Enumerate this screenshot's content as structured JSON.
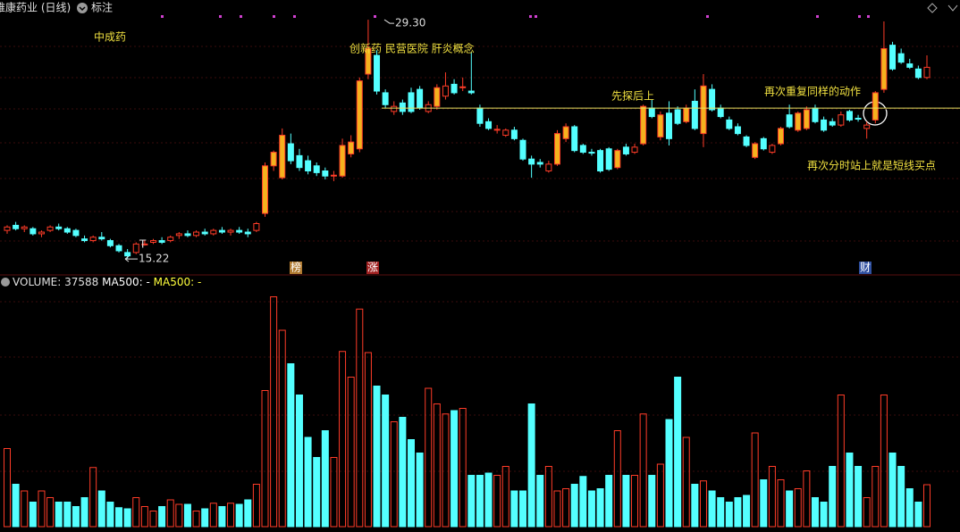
{
  "header": {
    "title": "维康药业 (日线)",
    "menu": "标注"
  },
  "chart_data": [
    {
      "type": "candlestick",
      "ylim": [
        14.7,
        30.46
      ],
      "up_color": "#ff3c28",
      "up_fill": "#f5b21e",
      "down_color": "#54ffff",
      "reference_line": {
        "value": 24.1,
        "color": "#e8e060"
      },
      "max_label": {
        "value": 29.3,
        "label": "29.30"
      },
      "min_label": {
        "value": 15.22,
        "label": "15.22"
      },
      "annotations": [
        "中成药",
        "创新药 民营医院 肝炎概念",
        "先探后上",
        "再次重复同样的动作",
        "再次分时站上就是短线买点",
        "T"
      ],
      "badges": [
        "榜",
        "涨",
        "财"
      ],
      "candles": [
        [
          16.9,
          17.2,
          16.7,
          17.1
        ],
        [
          17.2,
          17.4,
          16.9,
          17.0
        ],
        [
          17.0,
          17.2,
          16.8,
          17.1
        ],
        [
          17.0,
          17.1,
          16.6,
          16.7
        ],
        [
          16.7,
          16.9,
          16.5,
          16.8
        ],
        [
          16.9,
          17.2,
          16.8,
          17.1
        ],
        [
          17.1,
          17.3,
          16.9,
          17.0
        ],
        [
          17.0,
          17.1,
          16.7,
          16.8
        ],
        [
          16.9,
          17.0,
          16.5,
          16.6
        ],
        [
          16.4,
          16.6,
          16.2,
          16.3
        ],
        [
          16.3,
          16.6,
          16.2,
          16.5
        ],
        [
          16.5,
          16.8,
          16.3,
          16.4
        ],
        [
          16.3,
          16.4,
          15.9,
          16.0
        ],
        [
          16.0,
          16.1,
          15.6,
          15.7
        ],
        [
          15.6,
          15.8,
          15.22,
          15.4
        ],
        [
          15.6,
          16.2,
          15.5,
          16.1
        ],
        [
          16.1,
          16.3,
          16.0,
          16.1
        ],
        [
          16.2,
          16.4,
          16.1,
          16.3
        ],
        [
          16.3,
          16.5,
          16.1,
          16.2
        ],
        [
          16.3,
          16.6,
          16.2,
          16.5
        ],
        [
          16.6,
          16.8,
          16.4,
          16.7
        ],
        [
          16.7,
          16.9,
          16.5,
          16.6
        ],
        [
          16.6,
          16.9,
          16.5,
          16.8
        ],
        [
          16.8,
          17.0,
          16.6,
          16.7
        ],
        [
          16.7,
          17.0,
          16.6,
          16.9
        ],
        [
          16.9,
          17.1,
          16.7,
          16.8
        ],
        [
          16.8,
          17.0,
          16.6,
          16.9
        ],
        [
          16.9,
          17.1,
          16.7,
          16.8
        ],
        [
          16.8,
          17.0,
          16.5,
          16.7
        ],
        [
          16.9,
          17.4,
          16.8,
          17.3
        ],
        [
          17.9,
          20.9,
          17.7,
          20.7
        ],
        [
          20.7,
          21.6,
          20.4,
          21.5
        ],
        [
          20.0,
          22.9,
          19.9,
          22.5
        ],
        [
          22.0,
          22.6,
          20.8,
          21.0
        ],
        [
          21.3,
          21.7,
          20.4,
          20.6
        ],
        [
          21.0,
          21.3,
          20.2,
          20.4
        ],
        [
          20.7,
          20.9,
          20.1,
          20.3
        ],
        [
          20.4,
          20.6,
          19.9,
          20.1
        ],
        [
          20.1,
          20.4,
          19.8,
          20.15
        ],
        [
          20.1,
          22.3,
          20.0,
          21.9
        ],
        [
          21.4,
          22.5,
          21.2,
          22.1
        ],
        [
          21.7,
          25.9,
          21.5,
          25.7
        ],
        [
          26.1,
          29.3,
          25.8,
          27.6
        ],
        [
          27.2,
          27.5,
          24.9,
          25.1
        ],
        [
          25.0,
          25.2,
          24.1,
          24.3
        ],
        [
          23.9,
          24.5,
          23.7,
          24.2
        ],
        [
          24.4,
          24.6,
          23.7,
          23.9
        ],
        [
          25.0,
          25.3,
          23.8,
          23.9
        ],
        [
          25.2,
          25.4,
          24.0,
          24.1
        ],
        [
          23.9,
          24.5,
          23.8,
          24.3
        ],
        [
          24.2,
          25.5,
          24.0,
          25.3
        ],
        [
          24.8,
          26.2,
          24.6,
          25.4
        ],
        [
          25.5,
          25.8,
          24.9,
          25.0
        ],
        [
          25.3,
          25.9,
          25.1,
          25.35
        ],
        [
          25.1,
          27.4,
          24.9,
          25.0
        ],
        [
          24.1,
          24.3,
          23.0,
          23.2
        ],
        [
          23.3,
          23.5,
          22.8,
          22.9
        ],
        [
          22.8,
          23.1,
          22.6,
          22.85
        ],
        [
          22.5,
          22.9,
          22.4,
          22.8
        ],
        [
          22.8,
          23.0,
          22.2,
          22.3
        ],
        [
          22.2,
          22.3,
          21.0,
          21.1
        ],
        [
          21.1,
          21.3,
          20.0,
          20.8
        ],
        [
          20.9,
          21.1,
          20.6,
          20.8
        ],
        [
          20.4,
          21.0,
          20.3,
          20.8
        ],
        [
          20.8,
          22.8,
          20.7,
          22.6
        ],
        [
          22.3,
          23.2,
          22.1,
          23.0
        ],
        [
          23.0,
          23.1,
          21.5,
          21.6
        ],
        [
          21.9,
          22.0,
          21.4,
          21.5
        ],
        [
          21.5,
          21.7,
          21.3,
          21.45
        ],
        [
          21.6,
          21.7,
          20.3,
          20.4
        ],
        [
          21.7,
          21.8,
          20.4,
          20.5
        ],
        [
          20.6,
          21.7,
          20.5,
          21.6
        ],
        [
          21.8,
          22.0,
          21.3,
          21.4
        ],
        [
          21.5,
          22.0,
          21.4,
          21.8
        ],
        [
          22.0,
          24.3,
          21.9,
          24.2
        ],
        [
          24.1,
          24.6,
          23.5,
          23.6
        ],
        [
          22.4,
          23.9,
          22.2,
          23.7
        ],
        [
          23.8,
          24.5,
          21.9,
          22.3
        ],
        [
          24.0,
          24.2,
          23.1,
          23.2
        ],
        [
          23.3,
          24.3,
          23.2,
          24.1
        ],
        [
          24.5,
          25.2,
          22.8,
          22.9
        ],
        [
          22.6,
          26.1,
          21.8,
          25.4
        ],
        [
          25.2,
          25.5,
          23.9,
          24.0
        ],
        [
          24.1,
          24.3,
          23.5,
          23.6
        ],
        [
          23.4,
          23.6,
          22.8,
          22.9
        ],
        [
          23.0,
          23.2,
          22.5,
          22.6
        ],
        [
          22.4,
          22.5,
          21.8,
          21.9
        ],
        [
          21.2,
          22.1,
          21.1,
          22.0
        ],
        [
          22.3,
          22.4,
          21.6,
          21.7
        ],
        [
          21.5,
          22.0,
          21.4,
          21.9
        ],
        [
          22.0,
          23.0,
          21.9,
          22.9
        ],
        [
          23.7,
          24.3,
          22.9,
          23.0
        ],
        [
          22.8,
          23.9,
          22.7,
          23.8
        ],
        [
          22.9,
          24.2,
          22.8,
          24.0
        ],
        [
          24.1,
          24.3,
          23.2,
          23.3
        ],
        [
          23.4,
          23.6,
          22.7,
          22.8
        ],
        [
          23.3,
          23.5,
          23.0,
          23.1
        ],
        [
          23.1,
          23.9,
          23.0,
          23.7
        ],
        [
          23.9,
          24.0,
          23.3,
          23.4
        ],
        [
          23.5,
          23.7,
          23.3,
          23.45
        ],
        [
          22.9,
          23.3,
          22.3,
          23.1
        ],
        [
          23.4,
          25.1,
          23.2,
          25.0
        ],
        [
          25.2,
          29.2,
          25.0,
          27.6
        ],
        [
          27.8,
          28.0,
          26.3,
          26.4
        ],
        [
          27.3,
          27.6,
          26.7,
          26.8
        ],
        [
          26.7,
          27.0,
          26.4,
          26.5
        ],
        [
          26.4,
          26.6,
          25.8,
          25.9
        ],
        [
          25.9,
          27.2,
          25.8,
          26.5
        ]
      ]
    },
    {
      "type": "bar",
      "title": "VOLUME:",
      "ylim": [
        0,
        214400
      ],
      "indicators": [
        {
          "name": "MA500:",
          "value": "-",
          "color": "#ffffff"
        },
        {
          "name": "MA500:",
          "value": "-",
          "color": "#ffff3c"
        }
      ],
      "values": [
        70000,
        38000,
        32000,
        22000,
        32000,
        26000,
        22000,
        22000,
        18000,
        26000,
        53000,
        32000,
        22000,
        17000,
        16000,
        26000,
        18000,
        14000,
        18000,
        24000,
        20000,
        20000,
        14000,
        16000,
        21000,
        18000,
        21000,
        20000,
        24000,
        38000,
        122000,
        206000,
        176000,
        146000,
        118000,
        80000,
        62000,
        86000,
        62000,
        157000,
        134000,
        195000,
        156000,
        126000,
        118000,
        94000,
        98000,
        78000,
        66000,
        124000,
        110000,
        101000,
        104000,
        106000,
        46000,
        46000,
        48000,
        46000,
        54000,
        32000,
        32000,
        110000,
        46000,
        54000,
        32000,
        34000,
        38000,
        45000,
        32000,
        34000,
        46000,
        86000,
        46000,
        46000,
        101000,
        46000,
        56000,
        96000,
        134000,
        80000,
        38000,
        41000,
        32000,
        26000,
        22000,
        26000,
        28000,
        84000,
        42000,
        54000,
        42000,
        32000,
        34000,
        50000,
        26000,
        22000,
        54000,
        118000,
        66000,
        54000,
        26000,
        54000,
        118000,
        66000,
        54000,
        34000,
        22000,
        37588
      ]
    }
  ]
}
